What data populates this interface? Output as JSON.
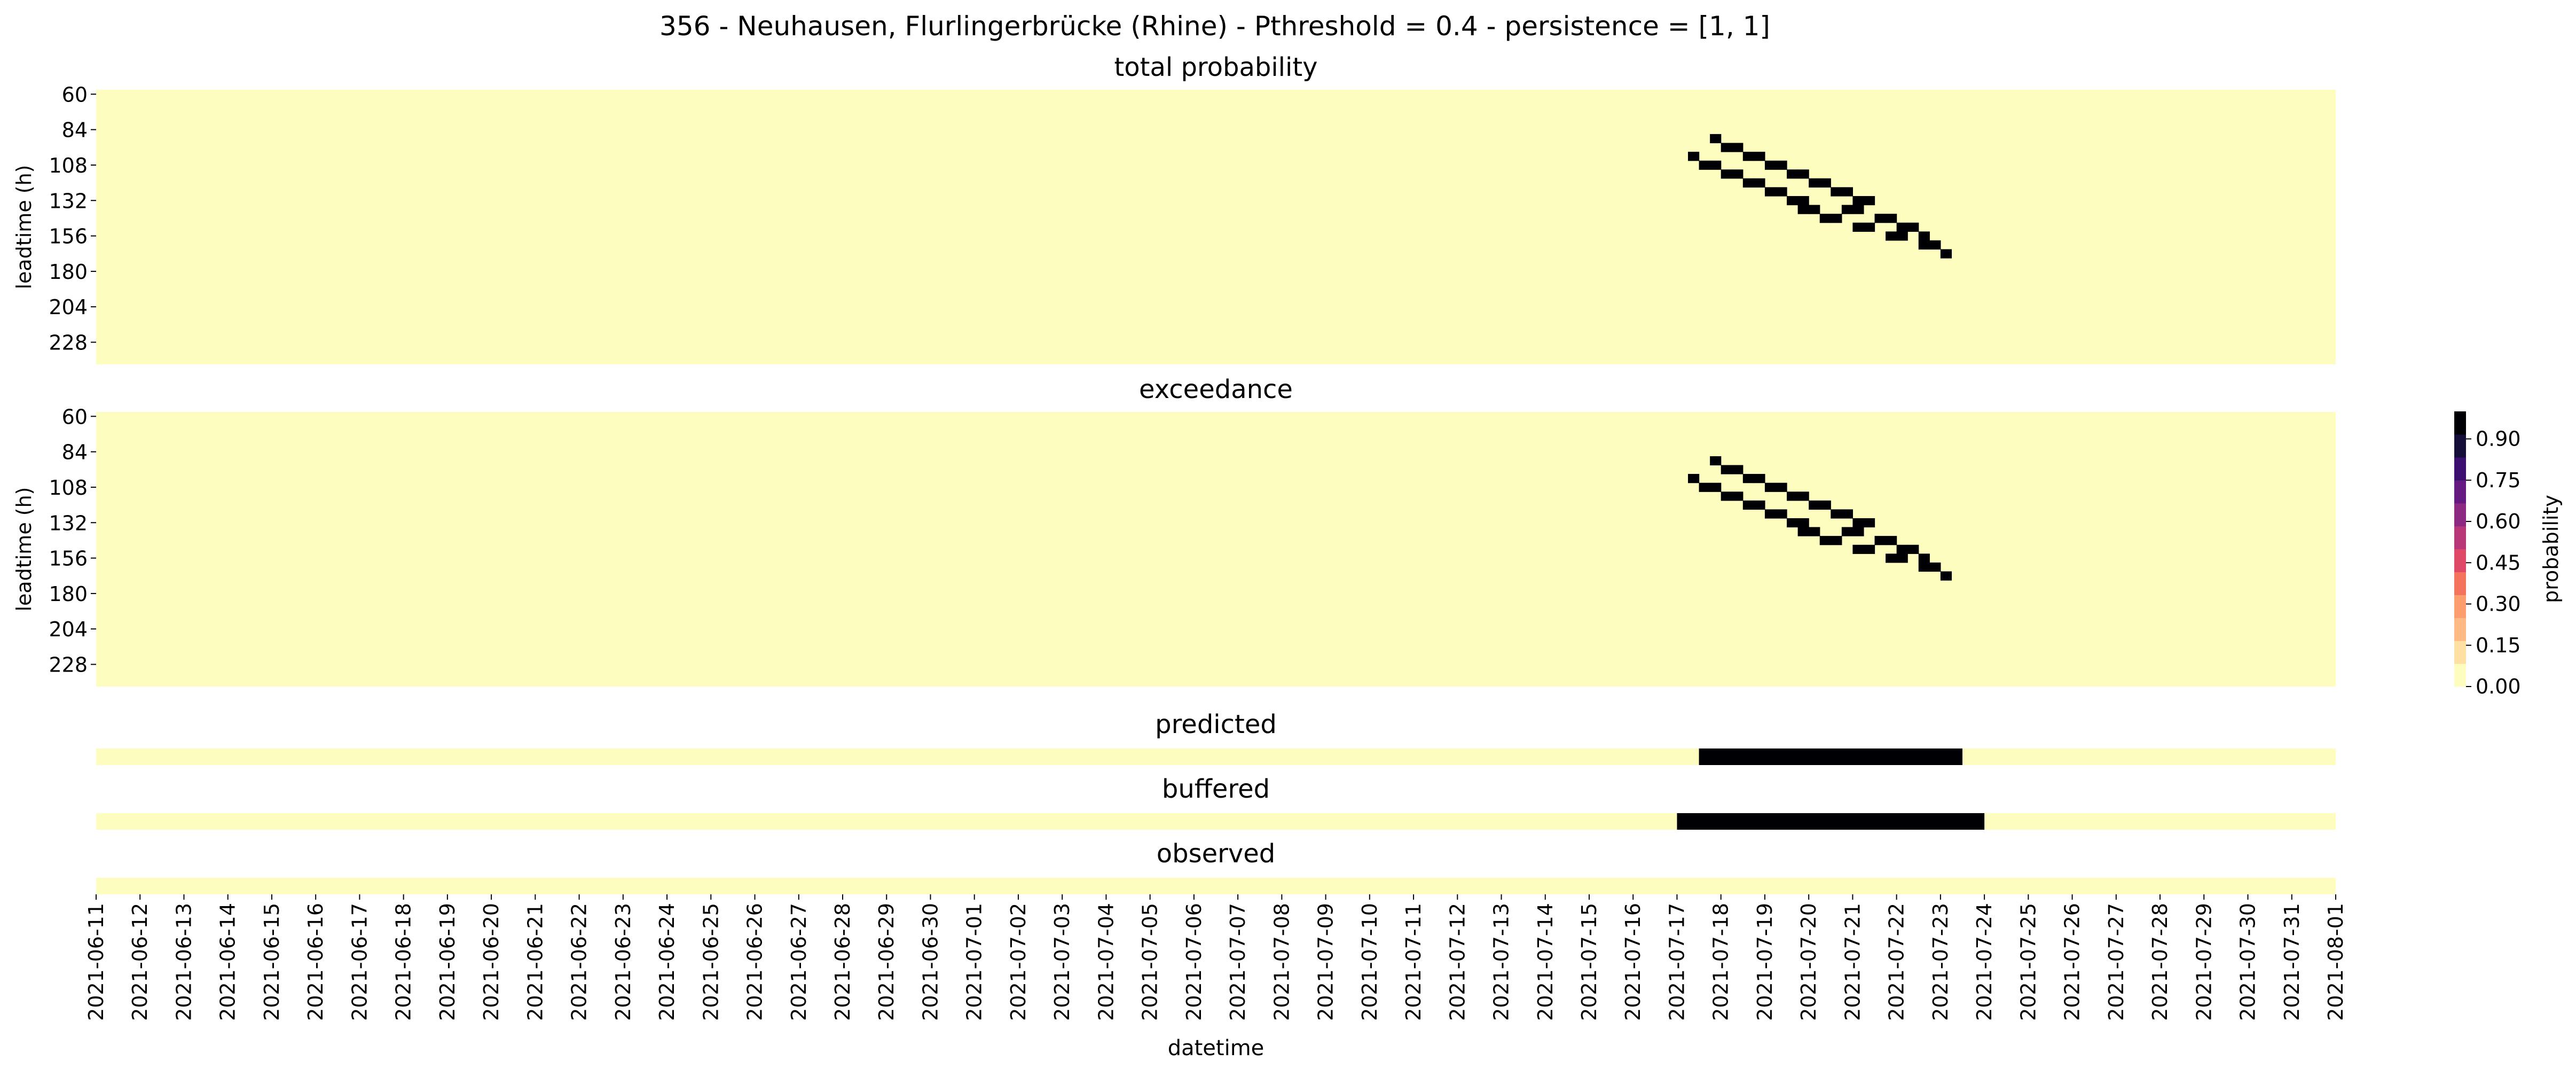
{
  "figure": {
    "title": "356 - Neuhausen, Flurlingerbrücke (Rhine) - Pthreshold = 0.4 - persistence = [1, 1]"
  },
  "chart_data": {
    "type": "heatmap",
    "xlabel": "datetime",
    "x_dates": [
      "2021-06-11",
      "2021-06-12",
      "2021-06-13",
      "2021-06-14",
      "2021-06-15",
      "2021-06-16",
      "2021-06-17",
      "2021-06-18",
      "2021-06-19",
      "2021-06-20",
      "2021-06-21",
      "2021-06-22",
      "2021-06-23",
      "2021-06-24",
      "2021-06-25",
      "2021-06-26",
      "2021-06-27",
      "2021-06-28",
      "2021-06-29",
      "2021-06-30",
      "2021-07-01",
      "2021-07-02",
      "2021-07-03",
      "2021-07-04",
      "2021-07-05",
      "2021-07-06",
      "2021-07-07",
      "2021-07-08",
      "2021-07-09",
      "2021-07-10",
      "2021-07-11",
      "2021-07-12",
      "2021-07-13",
      "2021-07-14",
      "2021-07-15",
      "2021-07-16",
      "2021-07-17",
      "2021-07-18",
      "2021-07-19",
      "2021-07-20",
      "2021-07-21",
      "2021-07-22",
      "2021-07-23",
      "2021-07-24",
      "2021-07-25",
      "2021-07-26",
      "2021-07-27",
      "2021-07-28",
      "2021-07-29",
      "2021-07-30",
      "2021-07-31",
      "2021-08-01"
    ],
    "leadtimes_h": [
      60,
      66,
      72,
      78,
      84,
      90,
      96,
      102,
      108,
      114,
      120,
      126,
      132,
      138,
      144,
      150,
      156,
      162,
      168,
      174,
      180,
      186,
      192,
      198,
      204,
      210,
      216,
      222,
      228,
      234,
      240
    ],
    "leadtime_ticks": [
      60,
      84,
      108,
      132,
      156,
      180,
      204,
      228
    ],
    "ylabel": "leadtime (h)",
    "cell_hours": 6,
    "colorbar": {
      "label": "probability",
      "min": 0.0,
      "max": 1.0,
      "ticks": [
        "0.00",
        "0.15",
        "0.30",
        "0.45",
        "0.60",
        "0.75",
        "0.90"
      ],
      "colors": [
        "#fcfdbf",
        "#fde0a2",
        "#feb984",
        "#fc9d6e",
        "#f4735c",
        "#de4968",
        "#b73779",
        "#8c2981",
        "#641a80",
        "#3b0f70",
        "#150e38",
        "#000004"
      ],
      "background": "#fcfdbf",
      "active": "#000004"
    },
    "panels": [
      {
        "title": "total probability",
        "kind": "matrix",
        "active_cells": [
          {
            "leadtime": 90,
            "time": "2021-07-17 18:00"
          },
          {
            "leadtime": 96,
            "time": "2021-07-18 00:00"
          },
          {
            "leadtime": 96,
            "time": "2021-07-18 06:00"
          },
          {
            "leadtime": 102,
            "time": "2021-07-17 06:00"
          },
          {
            "leadtime": 102,
            "time": "2021-07-18 12:00"
          },
          {
            "leadtime": 102,
            "time": "2021-07-18 18:00"
          },
          {
            "leadtime": 108,
            "time": "2021-07-17 12:00"
          },
          {
            "leadtime": 108,
            "time": "2021-07-17 18:00"
          },
          {
            "leadtime": 108,
            "time": "2021-07-19 00:00"
          },
          {
            "leadtime": 108,
            "time": "2021-07-19 06:00"
          },
          {
            "leadtime": 114,
            "time": "2021-07-18 00:00"
          },
          {
            "leadtime": 114,
            "time": "2021-07-18 06:00"
          },
          {
            "leadtime": 114,
            "time": "2021-07-19 12:00"
          },
          {
            "leadtime": 114,
            "time": "2021-07-19 18:00"
          },
          {
            "leadtime": 120,
            "time": "2021-07-18 12:00"
          },
          {
            "leadtime": 120,
            "time": "2021-07-18 18:00"
          },
          {
            "leadtime": 120,
            "time": "2021-07-20 00:00"
          },
          {
            "leadtime": 120,
            "time": "2021-07-20 06:00"
          },
          {
            "leadtime": 126,
            "time": "2021-07-19 00:00"
          },
          {
            "leadtime": 126,
            "time": "2021-07-19 06:00"
          },
          {
            "leadtime": 126,
            "time": "2021-07-20 12:00"
          },
          {
            "leadtime": 126,
            "time": "2021-07-20 18:00"
          },
          {
            "leadtime": 132,
            "time": "2021-07-19 12:00"
          },
          {
            "leadtime": 132,
            "time": "2021-07-19 18:00"
          },
          {
            "leadtime": 132,
            "time": "2021-07-21 00:00"
          },
          {
            "leadtime": 132,
            "time": "2021-07-21 06:00"
          },
          {
            "leadtime": 138,
            "time": "2021-07-19 18:00"
          },
          {
            "leadtime": 138,
            "time": "2021-07-20 00:00"
          },
          {
            "leadtime": 138,
            "time": "2021-07-20 18:00"
          },
          {
            "leadtime": 138,
            "time": "2021-07-21 00:00"
          },
          {
            "leadtime": 144,
            "time": "2021-07-20 06:00"
          },
          {
            "leadtime": 144,
            "time": "2021-07-20 12:00"
          },
          {
            "leadtime": 144,
            "time": "2021-07-21 12:00"
          },
          {
            "leadtime": 144,
            "time": "2021-07-21 18:00"
          },
          {
            "leadtime": 150,
            "time": "2021-07-21 00:00"
          },
          {
            "leadtime": 150,
            "time": "2021-07-21 06:00"
          },
          {
            "leadtime": 150,
            "time": "2021-07-22 00:00"
          },
          {
            "leadtime": 150,
            "time": "2021-07-22 06:00"
          },
          {
            "leadtime": 156,
            "time": "2021-07-21 18:00"
          },
          {
            "leadtime": 156,
            "time": "2021-07-22 00:00"
          },
          {
            "leadtime": 156,
            "time": "2021-07-22 12:00"
          },
          {
            "leadtime": 162,
            "time": "2021-07-22 12:00"
          },
          {
            "leadtime": 162,
            "time": "2021-07-22 18:00"
          },
          {
            "leadtime": 168,
            "time": "2021-07-23 00:00"
          }
        ]
      },
      {
        "title": "exceedance",
        "kind": "matrix",
        "same_as": "total probability"
      },
      {
        "title": "predicted",
        "kind": "strip",
        "active_ranges": [
          {
            "start": "2021-07-17 12:00",
            "end": "2021-07-23 06:00"
          }
        ]
      },
      {
        "title": "buffered",
        "kind": "strip",
        "active_ranges": [
          {
            "start": "2021-07-17 00:00",
            "end": "2021-07-23 18:00"
          }
        ]
      },
      {
        "title": "observed",
        "kind": "strip",
        "active_ranges": []
      }
    ]
  }
}
